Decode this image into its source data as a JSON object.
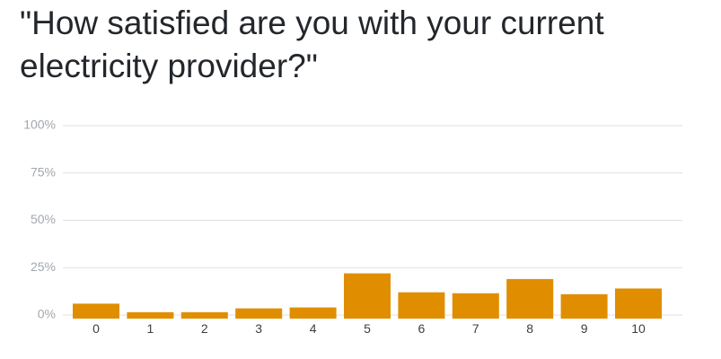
{
  "chart_data": {
    "type": "bar",
    "title": "\"How satisfied are you with your current electricity provider?\"",
    "categories": [
      "0",
      "1",
      "2",
      "3",
      "4",
      "5",
      "6",
      "7",
      "8",
      "9",
      "10"
    ],
    "values": [
      6,
      1.5,
      1.5,
      3.5,
      4,
      22,
      12,
      11.5,
      19,
      11,
      14
    ],
    "unit": "%",
    "ylim": [
      0,
      100
    ],
    "yticks": [
      0,
      25,
      50,
      75,
      100
    ],
    "ytick_labels": [
      "0%",
      "25%",
      "50%",
      "75%",
      "100%"
    ],
    "xlabel": "",
    "ylabel": "",
    "grid": true,
    "legend": "none",
    "colors": {
      "bar": "#E08E00",
      "grid": "#DCDFE3",
      "ytick_text": "#A2A7AE",
      "xtick_text": "#3A3F45",
      "title_text": "#23272C"
    }
  }
}
